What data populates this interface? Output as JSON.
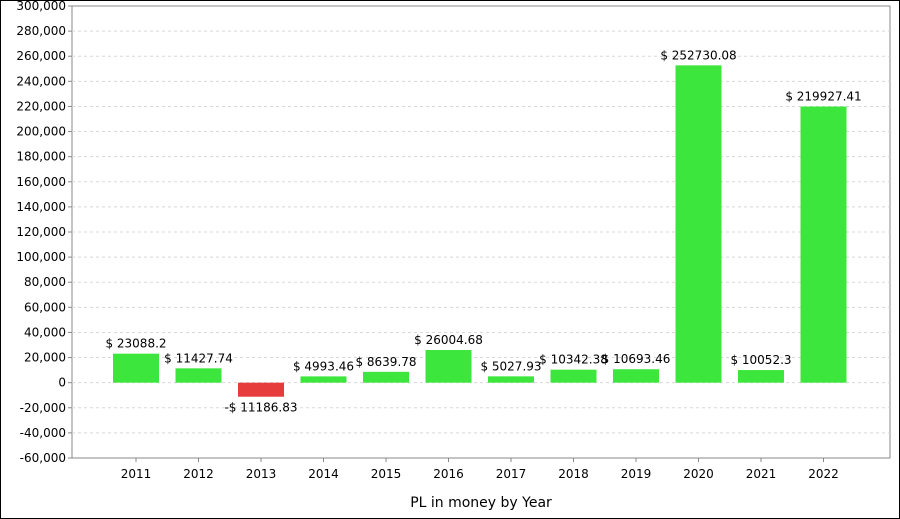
{
  "chart_data": {
    "type": "bar",
    "xlabel": "PL in money by Year",
    "ylabel": "",
    "ylim": [
      -60000,
      300000
    ],
    "ytick_step": 20000,
    "grid": true,
    "colors": {
      "positive": "#3ce63c",
      "negative": "#e63c3c",
      "grid": "#d8d8d8",
      "axis": "#888888",
      "text": "#000000"
    },
    "categories": [
      "2011",
      "2012",
      "2013",
      "2014",
      "2015",
      "2016",
      "2017",
      "2018",
      "2019",
      "2020",
      "2021",
      "2022"
    ],
    "values": [
      23088.2,
      11427.74,
      -11186.83,
      4993.46,
      8639.78,
      26004.68,
      5027.93,
      10342.38,
      10693.46,
      252730.08,
      10052.3,
      219927.41
    ],
    "data_labels": [
      "$ 23088.2",
      "$ 11427.74",
      "-$ 11186.83",
      "$ 4993.46",
      "$ 8639.78",
      "$ 26004.68",
      "$ 5027.93",
      "$ 10342.38",
      "$ 10693.46",
      "$ 252730.08",
      "$ 10052.3",
      "$ 219927.41"
    ],
    "ytick_labels": [
      "300,000",
      "280,000",
      "260,000",
      "240,000",
      "220,000",
      "200,000",
      "180,000",
      "160,000",
      "140,000",
      "120,000",
      "100,000",
      "80,000",
      "60,000",
      "40,000",
      "20,000",
      "0",
      "-20,000",
      "-40,000",
      "-60,000"
    ]
  }
}
